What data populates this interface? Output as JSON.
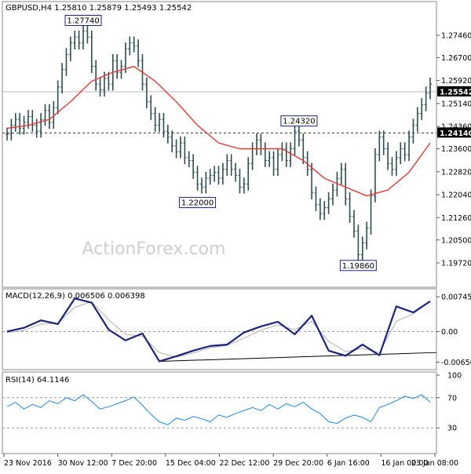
{
  "chart_data": [
    {
      "type": "line",
      "panel": "price",
      "header": "GBPUSD,H4  1.25810 1.25879 1.25493 1.25542",
      "watermark": "ActionForex.com",
      "ylim": [
        1.19,
        1.285
      ],
      "y_ticks": [
        "1.27460",
        "1.26700",
        "1.25920",
        "1.25140",
        "1.24360",
        "1.23600",
        "1.22820",
        "1.22040",
        "1.21260",
        "1.20500",
        "1.19720"
      ],
      "y_tick_values": [
        1.2746,
        1.267,
        1.2592,
        1.2514,
        1.2436,
        1.236,
        1.2282,
        1.2204,
        1.2126,
        1.205,
        1.1972
      ],
      "current_price": {
        "label": "1.25542",
        "value": 1.25542
      },
      "support_level": {
        "label": "1.24140",
        "value": 1.2414
      },
      "annotations": [
        {
          "label": "1.27740",
          "x": 18,
          "value": 1.2774
        },
        {
          "label": "1.24320",
          "x": 69,
          "value": 1.2432
        },
        {
          "label": "1.22000",
          "x": 45,
          "value": 1.22
        },
        {
          "label": "1.19860",
          "x": 83,
          "value": 1.1986
        }
      ],
      "series": [
        {
          "name": "",
          "x": [
            0,
            1,
            2,
            3,
            4,
            5,
            6,
            7,
            8,
            9,
            10,
            11,
            12,
            13,
            14,
            15,
            16,
            17,
            18,
            19,
            20,
            21,
            22,
            23,
            24,
            25,
            26,
            27,
            28,
            29,
            30,
            31,
            32,
            33,
            34,
            35,
            36,
            37,
            38,
            39,
            40,
            41,
            42,
            43,
            44,
            45,
            46,
            47,
            48,
            49,
            50,
            51,
            52,
            53,
            54,
            55,
            56,
            57,
            58,
            59,
            60,
            61,
            62,
            63,
            64,
            65,
            66,
            67,
            68,
            69,
            70,
            71,
            72,
            73,
            74,
            75,
            76,
            77,
            78,
            79,
            80,
            81,
            82,
            83,
            84,
            85,
            86,
            87,
            88,
            89,
            90,
            91,
            92,
            93,
            94,
            95,
            96,
            97,
            98,
            99,
            100
          ],
          "values": [
            1.241,
            1.244,
            1.246,
            1.243,
            1.245,
            1.247,
            1.244,
            1.242,
            1.246,
            1.249,
            1.245,
            1.25,
            1.257,
            1.263,
            1.268,
            1.272,
            1.274,
            1.272,
            1.276,
            1.274,
            1.264,
            1.258,
            1.256,
            1.26,
            1.258,
            1.266,
            1.262,
            1.264,
            1.27,
            1.272,
            1.271,
            1.266,
            1.258,
            1.252,
            1.248,
            1.244,
            1.246,
            1.242,
            1.24,
            1.237,
            1.235,
            1.238,
            1.233,
            1.232,
            1.228,
            1.224,
            1.223,
            1.226,
            1.227,
            1.228,
            1.226,
            1.229,
            1.232,
            1.229,
            1.227,
            1.223,
            1.224,
            1.231,
            1.236,
            1.239,
            1.236,
            1.232,
            1.233,
            1.229,
            1.234,
            1.236,
            1.232,
            1.236,
            1.242,
            1.239,
            1.233,
            1.229,
            1.221,
            1.217,
            1.214,
            1.216,
            1.219,
            1.222,
            1.226,
            1.229,
            1.219,
            1.213,
            1.208,
            1.2,
            1.204,
            1.209,
            1.22,
            1.234,
            1.24,
            1.236,
            1.231,
            1.229,
            1.233,
            1.236,
            1.234,
            1.24,
            1.244,
            1.248,
            1.251,
            1.255,
            1.258
          ]
        },
        {
          "name": "",
          "x": [
            0,
            5,
            10,
            15,
            20,
            25,
            30,
            35,
            40,
            45,
            50,
            55,
            60,
            65,
            70,
            75,
            80,
            85,
            90,
            95,
            100
          ],
          "values": [
            1.243,
            1.244,
            1.246,
            1.252,
            1.259,
            1.262,
            1.264,
            1.259,
            1.252,
            1.244,
            1.238,
            1.236,
            1.236,
            1.236,
            1.232,
            1.226,
            1.223,
            1.22,
            1.222,
            1.228,
            1.238
          ]
        }
      ]
    },
    {
      "type": "line",
      "panel": "macd",
      "header": "MACD(12,26,9) 0.006506 0.006398",
      "ylim": [
        -0.0075,
        0.0085
      ],
      "y_ticks": [
        "0.007452",
        "0.00",
        "-0.006568"
      ],
      "y_tick_values": [
        0.007452,
        0.0,
        -0.006568
      ],
      "trendline": [
        {
          "x": 36,
          "value": -0.0064
        },
        {
          "x": 100,
          "value": -0.0045
        }
      ],
      "series": [
        {
          "name": "",
          "x": [
            0,
            4,
            8,
            12,
            16,
            20,
            24,
            28,
            32,
            36,
            40,
            44,
            48,
            52,
            56,
            60,
            64,
            68,
            72,
            76,
            80,
            84,
            88,
            92,
            96,
            100
          ],
          "values": [
            0.0,
            0.0008,
            0.0024,
            0.0016,
            0.0071,
            0.0062,
            0.0004,
            -0.0019,
            -0.0004,
            -0.0064,
            -0.0053,
            -0.0041,
            -0.0031,
            -0.0028,
            -0.0002,
            0.0011,
            0.0021,
            -0.0006,
            0.0034,
            -0.0041,
            -0.0052,
            -0.0028,
            -0.0051,
            0.0054,
            0.0041,
            0.0065
          ]
        },
        {
          "name": "",
          "x": [
            0,
            4,
            8,
            12,
            16,
            20,
            24,
            28,
            32,
            36,
            40,
            44,
            48,
            52,
            56,
            60,
            64,
            68,
            72,
            76,
            80,
            84,
            88,
            92,
            96,
            100
          ],
          "values": [
            -0.0002,
            0.0002,
            0.0016,
            0.0018,
            0.0052,
            0.0064,
            0.0025,
            -0.0006,
            -0.001,
            -0.0045,
            -0.0055,
            -0.0046,
            -0.0035,
            -0.003,
            -0.0014,
            0.0003,
            0.0014,
            0.0004,
            0.0022,
            -0.0021,
            -0.0043,
            -0.0036,
            -0.0045,
            0.0022,
            0.0038,
            0.0064
          ]
        }
      ]
    },
    {
      "type": "line",
      "panel": "rsi",
      "header": "RSI(14) 64.1146",
      "ylim": [
        0,
        100
      ],
      "y_ticks": [
        "100",
        "70",
        "30",
        "0"
      ],
      "y_tick_values": [
        100,
        70,
        30,
        0
      ],
      "x_ticks": [
        "23 Nov 2016",
        "30 Nov 12:00",
        "7 Dec 20:00",
        "15 Dec 04:00",
        "22 Dec 12:00",
        "29 Dec 20:00",
        "6 Jan 16:00",
        "16 Jan 00:00",
        "23 Jan 08:00"
      ],
      "x_tick_positions": [
        0,
        12.5,
        25,
        37.5,
        50,
        62.5,
        75,
        87.5,
        100
      ],
      "series": [
        {
          "name": "",
          "x": [
            0,
            2,
            4,
            6,
            8,
            10,
            12,
            14,
            16,
            18,
            20,
            22,
            24,
            26,
            28,
            30,
            32,
            34,
            36,
            38,
            40,
            42,
            44,
            46,
            48,
            50,
            52,
            54,
            56,
            58,
            60,
            62,
            64,
            66,
            68,
            70,
            72,
            74,
            76,
            78,
            80,
            82,
            84,
            86,
            88,
            90,
            92,
            94,
            96,
            98,
            100
          ],
          "values": [
            58,
            64,
            55,
            61,
            57,
            66,
            62,
            70,
            66,
            74,
            65,
            55,
            58,
            62,
            66,
            71,
            60,
            48,
            38,
            34,
            43,
            40,
            45,
            42,
            38,
            47,
            44,
            49,
            53,
            57,
            53,
            61,
            55,
            62,
            58,
            64,
            55,
            49,
            38,
            36,
            43,
            47,
            44,
            38,
            57,
            61,
            66,
            72,
            69,
            74,
            64
          ]
        }
      ]
    }
  ]
}
